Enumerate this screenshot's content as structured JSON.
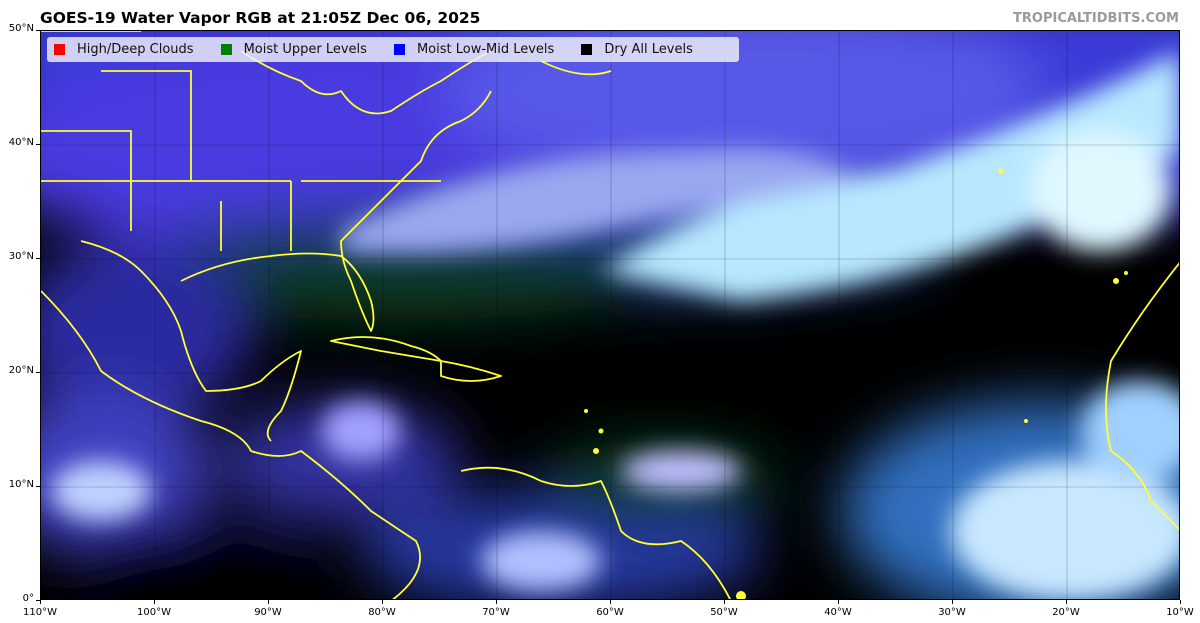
{
  "title": "GOES-19 Water Vapor RGB at 21:05Z Dec 06, 2025",
  "credit": "TROPICALTIDBITS.COM",
  "legend": [
    {
      "label": "High/Deep Clouds",
      "color": "#ff0000"
    },
    {
      "label": "Moist Upper Levels",
      "color": "#008000"
    },
    {
      "label": "Moist Low-Mid Levels",
      "color": "#0000ff"
    },
    {
      "label": "Dry All Levels",
      "color": "#000000"
    }
  ],
  "y_axis": [
    "50°N",
    "40°N",
    "30°N",
    "20°N",
    "10°N",
    "0°"
  ],
  "x_axis": [
    "110°W",
    "100°W",
    "90°W",
    "80°W",
    "70°W",
    "60°W",
    "50°W",
    "40°W",
    "30°W",
    "20°W",
    "10°W"
  ],
  "coastline_color": "#ffff33"
}
